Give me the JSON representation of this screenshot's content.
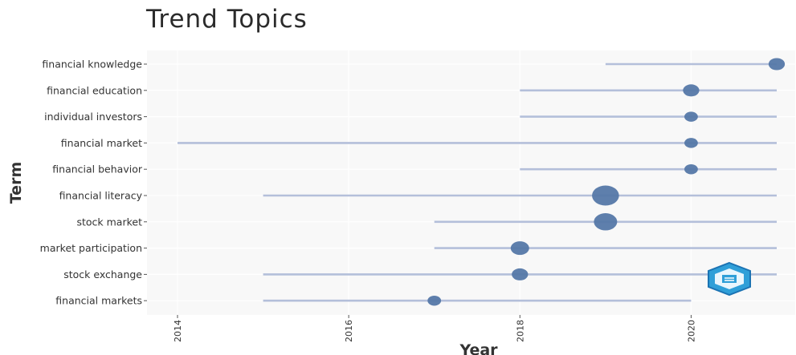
{
  "chart_data": {
    "type": "scatter",
    "title": "Trend Topics",
    "xlabel": "Year",
    "ylabel": "Term",
    "xlim": [
      2014,
      2021
    ],
    "x_ticks": [
      2014,
      2016,
      2018,
      2020
    ],
    "grid": true,
    "terms": [
      {
        "term": "financial knowledge",
        "start": 2019,
        "end": 2021,
        "median": 2021,
        "freq": 2
      },
      {
        "term": "financial education",
        "start": 2018,
        "end": 2021,
        "median": 2020,
        "freq": 2
      },
      {
        "term": "individual investors",
        "start": 2018,
        "end": 2021,
        "median": 2020,
        "freq": 1
      },
      {
        "term": "financial market",
        "start": 2014,
        "end": 2021,
        "median": 2020,
        "freq": 1
      },
      {
        "term": "financial behavior",
        "start": 2018,
        "end": 2021,
        "median": 2020,
        "freq": 1
      },
      {
        "term": "financial literacy",
        "start": 2015,
        "end": 2021,
        "median": 2019,
        "freq": 9
      },
      {
        "term": "stock market",
        "start": 2017,
        "end": 2021,
        "median": 2019,
        "freq": 6
      },
      {
        "term": "market participation",
        "start": 2017,
        "end": 2021,
        "median": 2018,
        "freq": 3
      },
      {
        "term": "stock exchange",
        "start": 2015,
        "end": 2021,
        "median": 2018,
        "freq": 2
      },
      {
        "term": "financial markets",
        "start": 2015,
        "end": 2020,
        "median": 2017,
        "freq": 1
      }
    ],
    "colors": {
      "line": "#b4bfda",
      "point": "#5578a8",
      "panel": "#f8f8f8",
      "grid": "#ffffff"
    }
  },
  "watermark": {
    "icon": "bibliometrix-hexagon-logo"
  }
}
